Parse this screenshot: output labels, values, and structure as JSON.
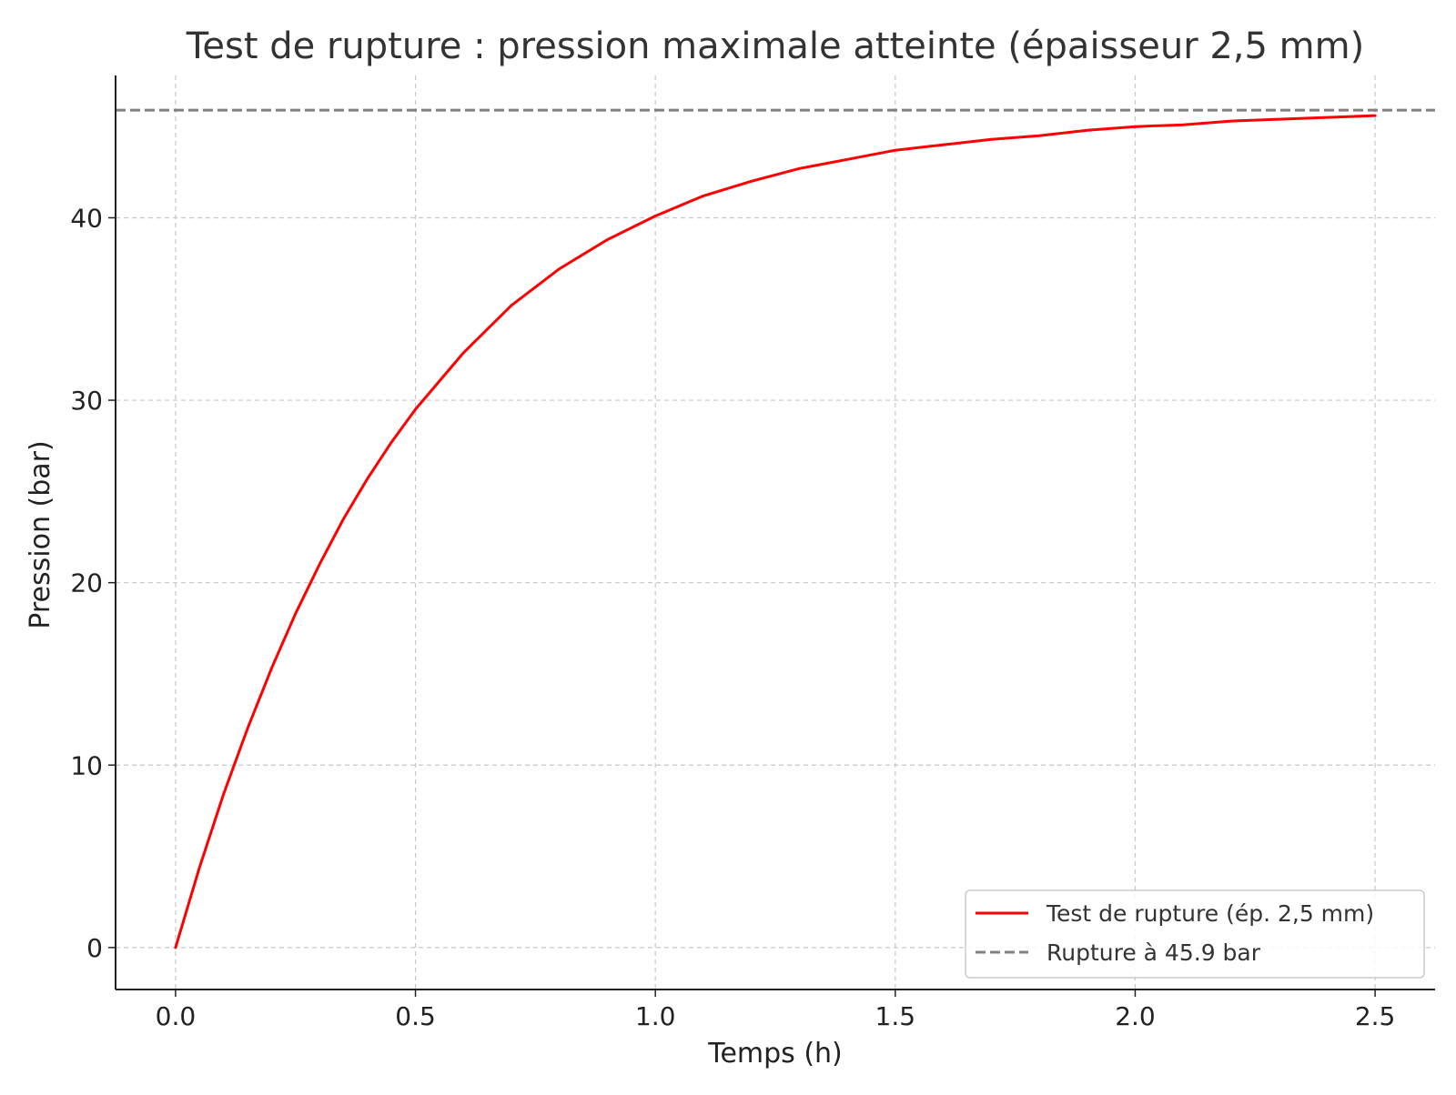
{
  "chart_data": {
    "type": "line",
    "title": "Test de rupture : pression maximale atteinte (épaisseur 2,5 mm)",
    "xlabel": "Temps (h)",
    "ylabel": "Pression (bar)",
    "xlim": [
      -0.125,
      2.625
    ],
    "ylim": [
      -2.3,
      47.8
    ],
    "xticks": [
      0.0,
      0.5,
      1.0,
      1.5,
      2.0,
      2.5
    ],
    "xtick_labels": [
      "0.0",
      "0.5",
      "1.0",
      "1.5",
      "2.0",
      "2.5"
    ],
    "yticks": [
      0,
      10,
      20,
      30,
      40
    ],
    "ytick_labels": [
      "0",
      "10",
      "20",
      "30",
      "40"
    ],
    "grid": true,
    "legend_position": "lower right",
    "series": [
      {
        "name": "Test de rupture (ép. 2,5 mm)",
        "color": "#ff0000",
        "style": "solid",
        "x": [
          0.0,
          0.05,
          0.1,
          0.15,
          0.2,
          0.25,
          0.3,
          0.35,
          0.4,
          0.45,
          0.5,
          0.6,
          0.7,
          0.8,
          0.9,
          1.0,
          1.1,
          1.2,
          1.3,
          1.4,
          1.5,
          1.6,
          1.7,
          1.8,
          1.9,
          2.0,
          2.1,
          2.2,
          2.3,
          2.4,
          2.5
        ],
        "y": [
          0.0,
          4.4,
          8.4,
          12.0,
          15.3,
          18.3,
          21.0,
          23.5,
          25.7,
          27.7,
          29.5,
          32.6,
          35.2,
          37.2,
          38.8,
          40.1,
          41.2,
          42.0,
          42.7,
          43.2,
          43.7,
          44.0,
          44.3,
          44.5,
          44.8,
          45.0,
          45.1,
          45.3,
          45.4,
          45.5,
          45.6
        ]
      },
      {
        "name": "Rupture à 45.9 bar",
        "color": "#808080",
        "style": "dashed",
        "y_constant": 45.9
      }
    ]
  }
}
